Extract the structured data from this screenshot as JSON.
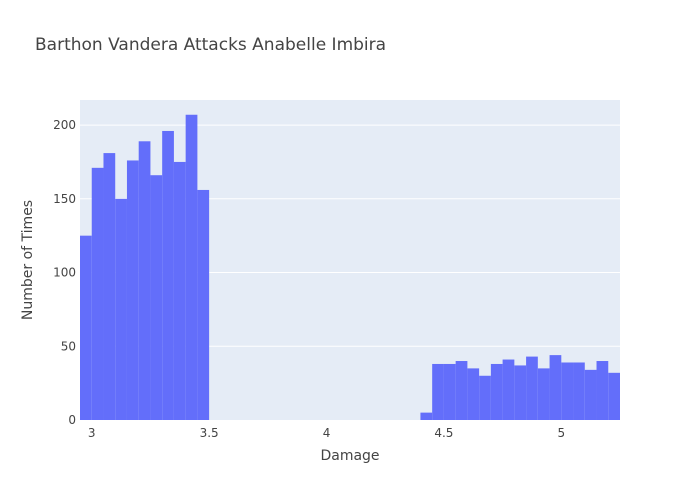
{
  "chart_data": {
    "type": "bar",
    "title": "Barthon Vandera Attacks Anabelle Imbira",
    "xlabel": "Damage",
    "ylabel": "Number of Times",
    "xlim": [
      2.95,
      5.25
    ],
    "ylim": [
      0,
      217
    ],
    "bin_width": 0.05,
    "grid": true,
    "legend": "none",
    "colors": {
      "bar": "#636efa",
      "plot_bg": "#e5ecf6",
      "grid": "#ffffff",
      "text": "#444444"
    },
    "x_ticks": [
      {
        "value": 3,
        "label": "3"
      },
      {
        "value": 3.5,
        "label": "3.5"
      },
      {
        "value": 4,
        "label": "4"
      },
      {
        "value": 4.5,
        "label": "4.5"
      },
      {
        "value": 5,
        "label": "5"
      }
    ],
    "y_ticks": [
      {
        "value": 0,
        "label": "0"
      },
      {
        "value": 50,
        "label": "50"
      },
      {
        "value": 100,
        "label": "100"
      },
      {
        "value": 150,
        "label": "150"
      },
      {
        "value": 200,
        "label": "200"
      }
    ],
    "bins": [
      {
        "x0": 2.95,
        "x1": 3.0,
        "count": 125
      },
      {
        "x0": 3.0,
        "x1": 3.05,
        "count": 171
      },
      {
        "x0": 3.05,
        "x1": 3.1,
        "count": 181
      },
      {
        "x0": 3.1,
        "x1": 3.15,
        "count": 150
      },
      {
        "x0": 3.15,
        "x1": 3.2,
        "count": 176
      },
      {
        "x0": 3.2,
        "x1": 3.25,
        "count": 189
      },
      {
        "x0": 3.25,
        "x1": 3.3,
        "count": 166
      },
      {
        "x0": 3.3,
        "x1": 3.35,
        "count": 196
      },
      {
        "x0": 3.35,
        "x1": 3.4,
        "count": 175
      },
      {
        "x0": 3.4,
        "x1": 3.45,
        "count": 207
      },
      {
        "x0": 3.45,
        "x1": 3.5,
        "count": 156
      },
      {
        "x0": 4.4,
        "x1": 4.45,
        "count": 5
      },
      {
        "x0": 4.45,
        "x1": 4.5,
        "count": 38
      },
      {
        "x0": 4.5,
        "x1": 4.55,
        "count": 38
      },
      {
        "x0": 4.55,
        "x1": 4.6,
        "count": 40
      },
      {
        "x0": 4.6,
        "x1": 4.65,
        "count": 35
      },
      {
        "x0": 4.65,
        "x1": 4.7,
        "count": 30
      },
      {
        "x0": 4.7,
        "x1": 4.75,
        "count": 38
      },
      {
        "x0": 4.75,
        "x1": 4.8,
        "count": 41
      },
      {
        "x0": 4.8,
        "x1": 4.85,
        "count": 37
      },
      {
        "x0": 4.85,
        "x1": 4.9,
        "count": 43
      },
      {
        "x0": 4.9,
        "x1": 4.95,
        "count": 35
      },
      {
        "x0": 4.95,
        "x1": 5.0,
        "count": 44
      },
      {
        "x0": 5.0,
        "x1": 5.05,
        "count": 39
      },
      {
        "x0": 5.05,
        "x1": 5.1,
        "count": 39
      },
      {
        "x0": 5.1,
        "x1": 5.15,
        "count": 34
      },
      {
        "x0": 5.15,
        "x1": 5.2,
        "count": 40
      },
      {
        "x0": 5.2,
        "x1": 5.25,
        "count": 32
      }
    ]
  }
}
